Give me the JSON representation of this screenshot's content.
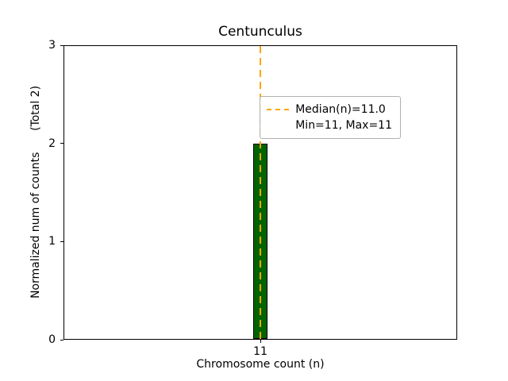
{
  "figure": {
    "title": "Centunculus",
    "xlabel": "Chromosome count (n)",
    "ylabel": "Normalized num of counts      (Total 2)",
    "xtick_label": "11"
  },
  "legend": {
    "median_label": "Median(n)=11.0",
    "minmax_label": "Min=11, Max=11"
  },
  "chart_data": {
    "type": "bar",
    "title": "Centunculus",
    "xlabel": "Chromosome count (n)",
    "ylabel": "Normalized num of counts (Total 2)",
    "categories": [
      "11"
    ],
    "values": [
      2
    ],
    "ylim": [
      0,
      3
    ],
    "yticks": [
      0,
      1,
      2,
      3
    ],
    "bar_color": "#006400",
    "bar_edge_color": "#000000",
    "median_line": {
      "x": 11,
      "value": 11.0,
      "color": "#ffa500",
      "style": "dashed",
      "label": "Median(n)=11.0"
    },
    "stats": {
      "median": 11.0,
      "min": 11,
      "max": 11,
      "total": 2
    },
    "annotations": [
      "Min=11, Max=11"
    ],
    "legend_position": "upper right",
    "grid": false
  }
}
